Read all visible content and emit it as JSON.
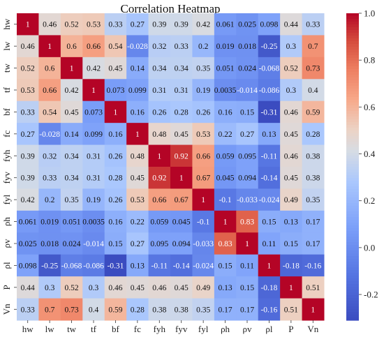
{
  "chart_data": {
    "type": "heatmap",
    "title": "Correlation Heatmap",
    "variables": [
      "hw",
      "lw",
      "tw",
      "tf",
      "bf",
      "fc",
      "fyh",
      "fyv",
      "fyl",
      "ρh",
      "ρv",
      "ρl",
      "P",
      "Vn"
    ],
    "matrix": [
      [
        1,
        0.46,
        0.52,
        0.53,
        0.33,
        0.27,
        0.39,
        0.39,
        0.42,
        0.061,
        0.025,
        0.098,
        0.44,
        0.33
      ],
      [
        0.46,
        1,
        0.6,
        0.66,
        0.54,
        -0.028,
        0.32,
        0.33,
        0.2,
        0.019,
        0.018,
        -0.25,
        0.3,
        0.7
      ],
      [
        0.52,
        0.6,
        1,
        0.42,
        0.45,
        0.14,
        0.34,
        0.34,
        0.35,
        0.051,
        0.024,
        -0.068,
        0.52,
        0.73
      ],
      [
        0.53,
        0.66,
        0.42,
        1,
        0.073,
        0.099,
        0.31,
        0.31,
        0.19,
        0.0035,
        -0.014,
        -0.086,
        0.3,
        0.4
      ],
      [
        0.33,
        0.54,
        0.45,
        0.073,
        1,
        0.16,
        0.26,
        0.28,
        0.26,
        0.16,
        0.15,
        -0.31,
        0.46,
        0.59
      ],
      [
        0.27,
        -0.028,
        0.14,
        0.099,
        0.16,
        1,
        0.48,
        0.45,
        0.53,
        0.22,
        0.27,
        0.13,
        0.45,
        0.28
      ],
      [
        0.39,
        0.32,
        0.34,
        0.31,
        0.26,
        0.48,
        1,
        0.92,
        0.66,
        0.059,
        0.095,
        -0.11,
        0.46,
        0.38
      ],
      [
        0.39,
        0.33,
        0.34,
        0.31,
        0.28,
        0.45,
        0.92,
        1,
        0.67,
        0.045,
        0.094,
        -0.14,
        0.45,
        0.38
      ],
      [
        0.42,
        0.2,
        0.35,
        0.19,
        0.26,
        0.53,
        0.66,
        0.67,
        1,
        -0.1,
        -0.033,
        -0.024,
        0.49,
        0.35
      ],
      [
        0.061,
        0.019,
        0.051,
        0.0035,
        0.16,
        0.22,
        0.059,
        0.045,
        -0.1,
        1,
        0.83,
        0.15,
        0.13,
        0.17
      ],
      [
        0.025,
        0.018,
        0.024,
        -0.014,
        0.15,
        0.27,
        0.095,
        0.094,
        -0.033,
        0.83,
        1,
        0.11,
        0.15,
        0.17
      ],
      [
        0.098,
        -0.25,
        -0.068,
        -0.086,
        -0.31,
        0.13,
        -0.11,
        -0.14,
        -0.024,
        0.15,
        0.11,
        1,
        -0.18,
        -0.16
      ],
      [
        0.44,
        0.3,
        0.52,
        0.3,
        0.46,
        0.45,
        0.46,
        0.45,
        0.49,
        0.13,
        0.15,
        -0.18,
        1,
        0.51
      ],
      [
        0.33,
        0.7,
        0.73,
        0.4,
        0.59,
        0.28,
        0.38,
        0.38,
        0.35,
        0.17,
        0.17,
        -0.16,
        0.51,
        1
      ]
    ],
    "colorbar": {
      "range": [
        -0.31,
        1.0
      ],
      "ticks": [
        -0.2,
        0.0,
        0.2,
        0.4,
        0.6,
        0.8,
        1.0
      ],
      "colormap": "coolwarm"
    },
    "colors": {
      "low": "#3b4cc0",
      "mid": "#dddddd",
      "high": "#b40426"
    }
  }
}
